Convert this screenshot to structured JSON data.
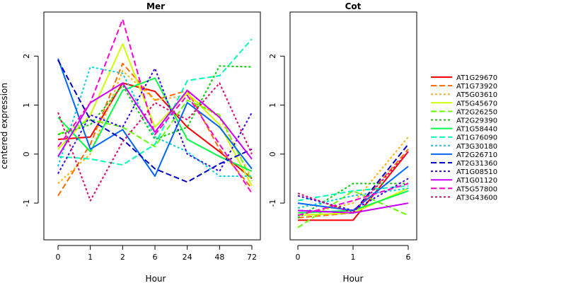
{
  "chart_data": [
    {
      "type": "line",
      "title": "Mer",
      "xlabel": "Hour",
      "ylabel": "centered expression",
      "categories": [
        "0",
        "1",
        "2",
        "6",
        "24",
        "48",
        "72"
      ],
      "ylim": [
        -1.75,
        2.9
      ],
      "yticks": [
        -1,
        0,
        1,
        2
      ],
      "series": [
        {
          "name": "AT1G29670",
          "color": "#FF0000",
          "dash": "solid",
          "values": [
            0.3,
            0.35,
            1.45,
            1.28,
            0.55,
            0.05,
            -0.5
          ]
        },
        {
          "name": "AT1G73920",
          "color": "#FF6A00",
          "dash": "dashed",
          "values": [
            -0.85,
            0.2,
            1.85,
            1.1,
            1.3,
            0.1,
            -0.7
          ]
        },
        {
          "name": "AT5G03610",
          "color": "#FFB300",
          "dash": "dotted",
          "values": [
            -0.6,
            0.0,
            1.7,
            1.1,
            1.2,
            0.75,
            -0.5
          ]
        },
        {
          "name": "AT5G45670",
          "color": "#CCFF00",
          "dash": "solid",
          "values": [
            0.1,
            0.8,
            2.25,
            0.55,
            1.25,
            0.6,
            -0.65
          ]
        },
        {
          "name": "AT2G26250",
          "color": "#66FF00",
          "dash": "dashed",
          "values": [
            0.4,
            0.7,
            0.55,
            0.15,
            1.1,
            0.8,
            -0.55
          ]
        },
        {
          "name": "AT2G29390",
          "color": "#00CC00",
          "dash": "dotted",
          "values": [
            0.4,
            0.6,
            1.4,
            0.3,
            0.55,
            1.8,
            1.78
          ]
        },
        {
          "name": "AT1G58440",
          "color": "#00FF44",
          "dash": "solid",
          "values": [
            0.75,
            0.05,
            1.3,
            1.55,
            0.3,
            -0.05,
            -0.35
          ]
        },
        {
          "name": "AT1G76090",
          "color": "#00FFB3",
          "dash": "dashed",
          "values": [
            -0.05,
            -0.1,
            -0.22,
            0.2,
            1.5,
            1.6,
            2.35
          ]
        },
        {
          "name": "AT3G30180",
          "color": "#00D0E0",
          "dash": "dotted",
          "values": [
            -0.25,
            1.78,
            1.65,
            0.35,
            0.05,
            -0.45,
            -0.45
          ]
        },
        {
          "name": "AT2G26710",
          "color": "#0066FF",
          "dash": "solid",
          "values": [
            1.95,
            0.1,
            0.5,
            -0.45,
            1.05,
            0.55,
            -0.3
          ]
        },
        {
          "name": "AT2G31360",
          "color": "#0000CC",
          "dash": "dashed",
          "values": [
            1.92,
            0.7,
            0.3,
            -0.3,
            -0.57,
            -0.2,
            0.1
          ]
        },
        {
          "name": "AT1G08510",
          "color": "#3300FF",
          "dash": "dotted",
          "values": [
            -0.4,
            0.8,
            0.55,
            1.75,
            0.0,
            -0.35,
            0.85
          ]
        },
        {
          "name": "AT1G01120",
          "color": "#CC00FF",
          "dash": "solid",
          "values": [
            -0.05,
            1.05,
            1.45,
            0.45,
            1.3,
            0.75,
            -0.1
          ]
        },
        {
          "name": "AT5G57800",
          "color": "#FF00CC",
          "dash": "dashed",
          "values": [
            0.15,
            1.05,
            2.75,
            0.4,
            1.2,
            0.2,
            -0.8
          ]
        },
        {
          "name": "AT3G43600",
          "color": "#E0006A",
          "dash": "dotted",
          "values": [
            0.85,
            -0.95,
            0.25,
            1.05,
            0.7,
            1.45,
            0.0
          ]
        }
      ]
    },
    {
      "type": "line",
      "title": "Cot",
      "xlabel": "Hour",
      "ylabel": "",
      "categories": [
        "0",
        "1",
        "6"
      ],
      "ylim": [
        -1.75,
        2.9
      ],
      "yticks": [
        -1,
        0,
        1,
        2
      ],
      "series": [
        {
          "name": "AT1G29670",
          "color": "#FF0000",
          "dash": "solid",
          "values": [
            -1.35,
            -1.35,
            0.05
          ]
        },
        {
          "name": "AT1G73920",
          "color": "#FF6A00",
          "dash": "dashed",
          "values": [
            -1.3,
            -1.2,
            0.1
          ]
        },
        {
          "name": "AT5G03610",
          "color": "#FFB300",
          "dash": "dotted",
          "values": [
            -1.25,
            -1.0,
            0.35
          ]
        },
        {
          "name": "AT5G45670",
          "color": "#CCFF00",
          "dash": "solid",
          "values": [
            -1.25,
            -1.2,
            -0.7
          ]
        },
        {
          "name": "AT2G26250",
          "color": "#66FF00",
          "dash": "dashed",
          "values": [
            -1.5,
            -0.75,
            -1.25
          ]
        },
        {
          "name": "AT2G29390",
          "color": "#00CC00",
          "dash": "dotted",
          "values": [
            -1.3,
            -0.6,
            -0.6
          ]
        },
        {
          "name": "AT1G58440",
          "color": "#00FF44",
          "dash": "solid",
          "values": [
            -1.2,
            -1.15,
            -0.75
          ]
        },
        {
          "name": "AT1G76090",
          "color": "#00FFB3",
          "dash": "dashed",
          "values": [
            -0.95,
            -0.75,
            -0.65
          ]
        },
        {
          "name": "AT3G30180",
          "color": "#00D0E0",
          "dash": "dotted",
          "values": [
            -1.1,
            -0.85,
            -0.7
          ]
        },
        {
          "name": "AT2G26710",
          "color": "#0066FF",
          "dash": "solid",
          "values": [
            -1.0,
            -1.15,
            -0.25
          ]
        },
        {
          "name": "AT2G31360",
          "color": "#0000CC",
          "dash": "dashed",
          "values": [
            -1.15,
            -1.2,
            0.2
          ]
        },
        {
          "name": "AT1G08510",
          "color": "#3300FF",
          "dash": "dotted",
          "values": [
            -0.85,
            -1.15,
            -0.5
          ]
        },
        {
          "name": "AT1G01120",
          "color": "#CC00FF",
          "dash": "solid",
          "values": [
            -1.15,
            -1.2,
            -1.0
          ]
        },
        {
          "name": "AT5G57800",
          "color": "#FF00CC",
          "dash": "dashed",
          "values": [
            -1.25,
            -0.95,
            -0.6
          ]
        },
        {
          "name": "AT3G43600",
          "color": "#E0006A",
          "dash": "dotted",
          "values": [
            -0.8,
            -1.2,
            0.05
          ]
        }
      ]
    }
  ]
}
